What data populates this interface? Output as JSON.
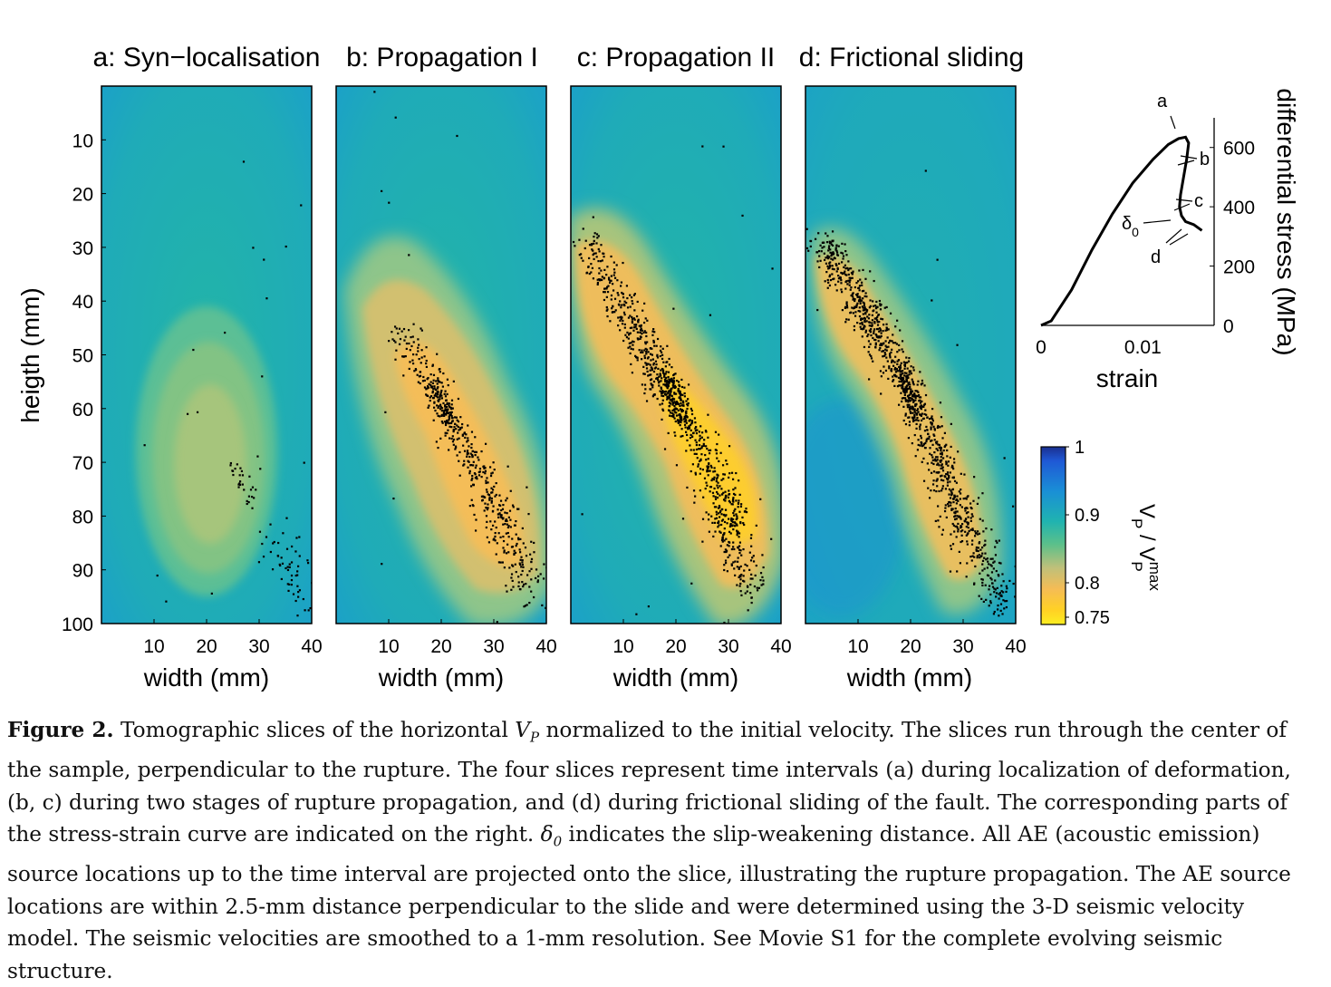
{
  "figure": {
    "panels": [
      {
        "id": "a",
        "title": "a: Syn−localisation"
      },
      {
        "id": "b",
        "title": "b: Propagation I"
      },
      {
        "id": "c",
        "title": "c: Propagation II"
      },
      {
        "id": "d",
        "title": "d: Frictional sliding"
      }
    ],
    "y_axis_label": "heigth (mm)",
    "x_axis_label": "width (mm)",
    "colorbar": {
      "label_main": "V",
      "label_sub": "P",
      "label_div": " / V",
      "label_sub2": "P",
      "label_sup2": "max",
      "ticks": [
        "1",
        "0.9",
        "0.8",
        "0.75"
      ]
    },
    "stress_strain": {
      "xlabel": "strain",
      "ylabel": "differential stress (MPa)",
      "x_ticks": [
        "0",
        "0.01"
      ],
      "y_ticks": [
        "0",
        "200",
        "400",
        "600"
      ],
      "annotations": [
        "a",
        "b",
        "c",
        "d"
      ],
      "delta_label": "δ",
      "delta_sub": "0"
    }
  },
  "chart_data": [
    {
      "type": "heatmap",
      "panel": "a",
      "title": "a: Syn−localisation",
      "xlabel": "width (mm)",
      "ylabel": "heigth (mm)",
      "x_ticks": [
        10,
        20,
        30,
        40
      ],
      "y_ticks": [
        10,
        20,
        30,
        40,
        50,
        60,
        70,
        80,
        90,
        100
      ],
      "xlim": [
        0,
        40
      ],
      "ylim": [
        0,
        100
      ],
      "y_reversed": true,
      "background_vp_ratio": 0.9,
      "anomalies": [
        {
          "center": [
            20,
            68
          ],
          "radius_x": [
            13,
            11,
            7
          ],
          "radius_y": [
            29,
            24,
            15
          ],
          "vp_ratio": [
            0.875,
            0.86,
            0.845
          ]
        }
      ],
      "ae_events": "sparse cluster near 25-40 mm width, 70-100 mm height, plus scattered points"
    },
    {
      "type": "heatmap",
      "panel": "b",
      "title": "b: Propagation I",
      "xlabel": "width (mm)",
      "x_ticks": [
        10,
        20,
        30,
        40
      ],
      "xlim": [
        0,
        40
      ],
      "ylim": [
        0,
        100
      ],
      "background_vp_ratio": 0.9,
      "anomaly_band": {
        "from": [
          11,
          40
        ],
        "to": [
          36,
          92
        ],
        "vp_ratio_min": 0.8
      },
      "ae_events": "dense band from ~(12,45) to ~(38,95)"
    },
    {
      "type": "heatmap",
      "panel": "c",
      "title": "c: Propagation II",
      "xlabel": "width (mm)",
      "x_ticks": [
        10,
        20,
        30,
        40
      ],
      "xlim": [
        0,
        40
      ],
      "ylim": [
        0,
        100
      ],
      "background_vp_ratio": 0.9,
      "anomaly_band": {
        "from": [
          2,
          30
        ],
        "to": [
          36,
          88
        ],
        "vp_ratio_min": 0.77
      },
      "ae_events": "dense band from ~(2,28) to ~(36,95)"
    },
    {
      "type": "heatmap",
      "panel": "d",
      "title": "d: Frictional sliding",
      "xlabel": "width (mm)",
      "x_ticks": [
        10,
        20,
        30,
        40
      ],
      "xlim": [
        0,
        40
      ],
      "ylim": [
        0,
        100
      ],
      "background_vp_ratio": 0.9,
      "anomaly_band": {
        "from": [
          4,
          30
        ],
        "to": [
          36,
          92
        ],
        "vp_ratio_min": 0.82
      },
      "ae_events": "dense band from ~(2,28) to ~(38,97)"
    },
    {
      "type": "line",
      "panel": "stress-strain",
      "xlabel": "strain",
      "ylabel": "differential stress (MPa)",
      "xlim": [
        0,
        0.017
      ],
      "ylim": [
        0,
        700
      ],
      "x_ticks": [
        0,
        0.01
      ],
      "y_ticks": [
        0,
        200,
        400,
        600
      ],
      "x": [
        0,
        0.001,
        0.003,
        0.005,
        0.007,
        0.009,
        0.011,
        0.0125,
        0.0135,
        0.0142,
        0.0145,
        0.0143,
        0.014,
        0.0137,
        0.0136,
        0.0138,
        0.0142,
        0.015,
        0.0158
      ],
      "y": [
        0,
        15,
        120,
        255,
        375,
        480,
        560,
        610,
        630,
        635,
        615,
        560,
        500,
        440,
        400,
        370,
        350,
        340,
        320
      ]
    }
  ],
  "caption": {
    "label": "Figure 2.",
    "t1": " Tomographic slices of the horizontal ",
    "vp_var": "V",
    "vp_sub": "P",
    "t2": " normalized to the initial velocity. The slices run through the center of the sample, perpendicular to the rupture. The four slices represent time intervals (a) during localization of deformation, (b, c) during two stages of rupture propagation, and (d) during frictional sliding of the fault. The corresponding parts of the stress-strain curve are indicated on the right. ",
    "delta": "δ",
    "delta_sub": "0",
    "t3": " indicates the slip-weakening distance. All AE (acoustic emission) source locations up to the time interval are projected onto the slice, illustrating the rupture propagation. The AE source locations are within 2.5-mm distance perpendicular to the slide and were determined using the 3-D seismic velocity model. The seismic velocities are smoothed to a 1-mm resolution. See Movie S1 for the complete evolving seismic structure."
  },
  "colors": {
    "background_teal": "#20b3aa",
    "slow_yellow": "#ffd22e",
    "mid_orange": "#f8bd50",
    "high_blue": "#1060d8",
    "events": "#000000"
  }
}
